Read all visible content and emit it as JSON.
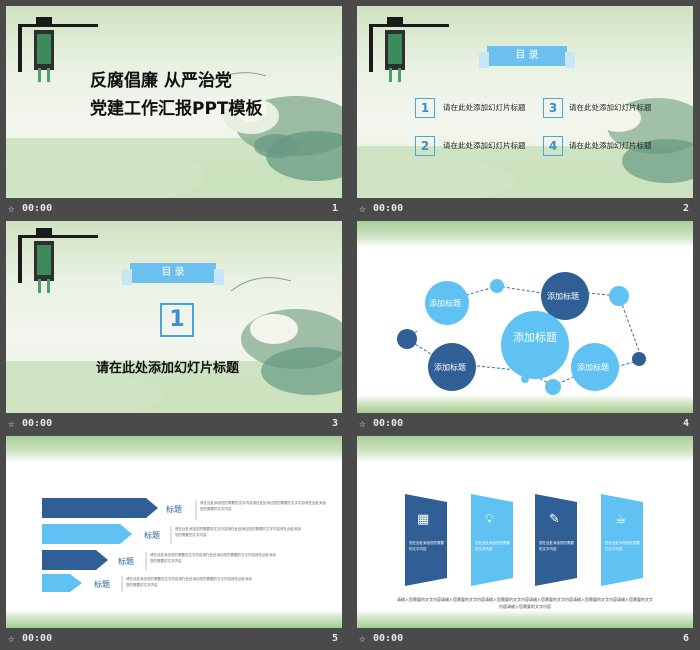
{
  "slides": [
    {
      "number": "1",
      "time": "00:00",
      "title_line1": "反腐倡廉  从严治党",
      "title_line2": "党建工作汇报PPT模板"
    },
    {
      "number": "2",
      "time": "00:00",
      "banner": "目  录",
      "items": [
        {
          "num": "1",
          "text": "请在此处添加幻灯片标题"
        },
        {
          "num": "2",
          "text": "请在此处添加幻灯片标题"
        },
        {
          "num": "3",
          "text": "请在此处添加幻灯片标题"
        },
        {
          "num": "4",
          "text": "请在此处添加幻灯片标题"
        }
      ]
    },
    {
      "number": "3",
      "time": "00:00",
      "banner": "目  录",
      "num": "1",
      "heading": "请在此处添加幻灯片标题"
    },
    {
      "number": "4",
      "time": "00:00",
      "center": "添加标题",
      "nodes": [
        "添加标题",
        "添加标题",
        "添加标题",
        "添加标题"
      ]
    },
    {
      "number": "5",
      "time": "00:00",
      "labels": [
        "标题",
        "标题",
        "标题",
        "标题"
      ],
      "desc": "请在此处添加您的需要的文字内容请在此处添加您的需要的文字内容请在此处添加您的需要的文字内容"
    },
    {
      "number": "6",
      "time": "00:00",
      "card_text": "您在此处添加您的需要的文字内容",
      "footer": "请输入您需要的文字内容请输入您需要的文字内容请输入您需要的文字内容请输入您需要的文字内容请输入您需要的文字内容请输入您需要的文字内容请输入您需要的文字内容"
    }
  ],
  "colors": {
    "dark_blue": "#2f5f95",
    "light_blue": "#5fc2f2",
    "accent": "#6cc0ee",
    "background": "#4a4a4a"
  }
}
